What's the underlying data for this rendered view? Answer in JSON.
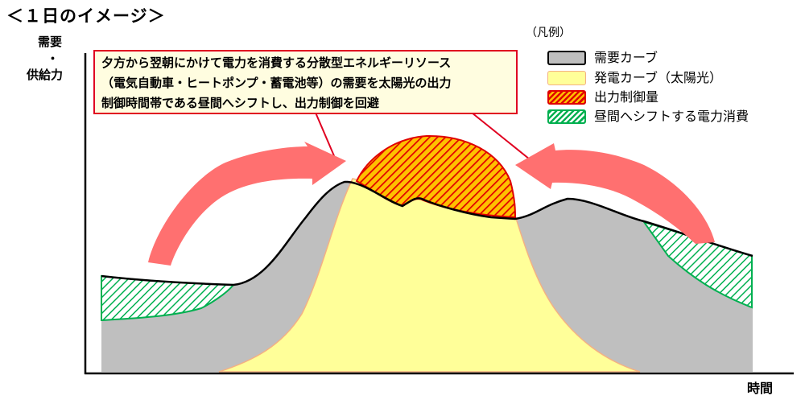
{
  "title": "＜１日のイメージ＞",
  "y_axis_label_lines": [
    "需要",
    "・",
    "供給力"
  ],
  "x_axis_label": "時間",
  "callout_lines": [
    "夕方から翌朝にかけて電力を消費する分散型エネルギーリソース",
    "（電気自動車・ヒートポンプ・蓄電池等）の需要を太陽光の出力",
    "制御時間帯である昼間へシフトし、出力制御を回避"
  ],
  "legend": {
    "title": "（凡例）",
    "items": [
      {
        "label": "需要カーブ",
        "fill": "#bfbfbf",
        "border": "#000000",
        "pattern": "solid"
      },
      {
        "label": "発電カーブ（太陽光）",
        "fill": "#ffff99",
        "border": "#f4b183",
        "pattern": "solid"
      },
      {
        "label": "出力制御量",
        "fill": "#ffc000",
        "border": "#e00000",
        "stripe": "#e00000",
        "pattern": "hatch"
      },
      {
        "label": "昼間へシフトする電力消費",
        "fill": "#ffffff",
        "border": "#00b050",
        "stripe": "#00b050",
        "pattern": "hatch"
      }
    ]
  },
  "colors": {
    "demand": "#bfbfbf",
    "solar": "#ffff99",
    "curtailment_stripe": "#e00000",
    "shift_stripe": "#00b050",
    "arrow": "#ff7070",
    "callout_border": "#e00020",
    "callout_bg": "#fffde0"
  }
}
